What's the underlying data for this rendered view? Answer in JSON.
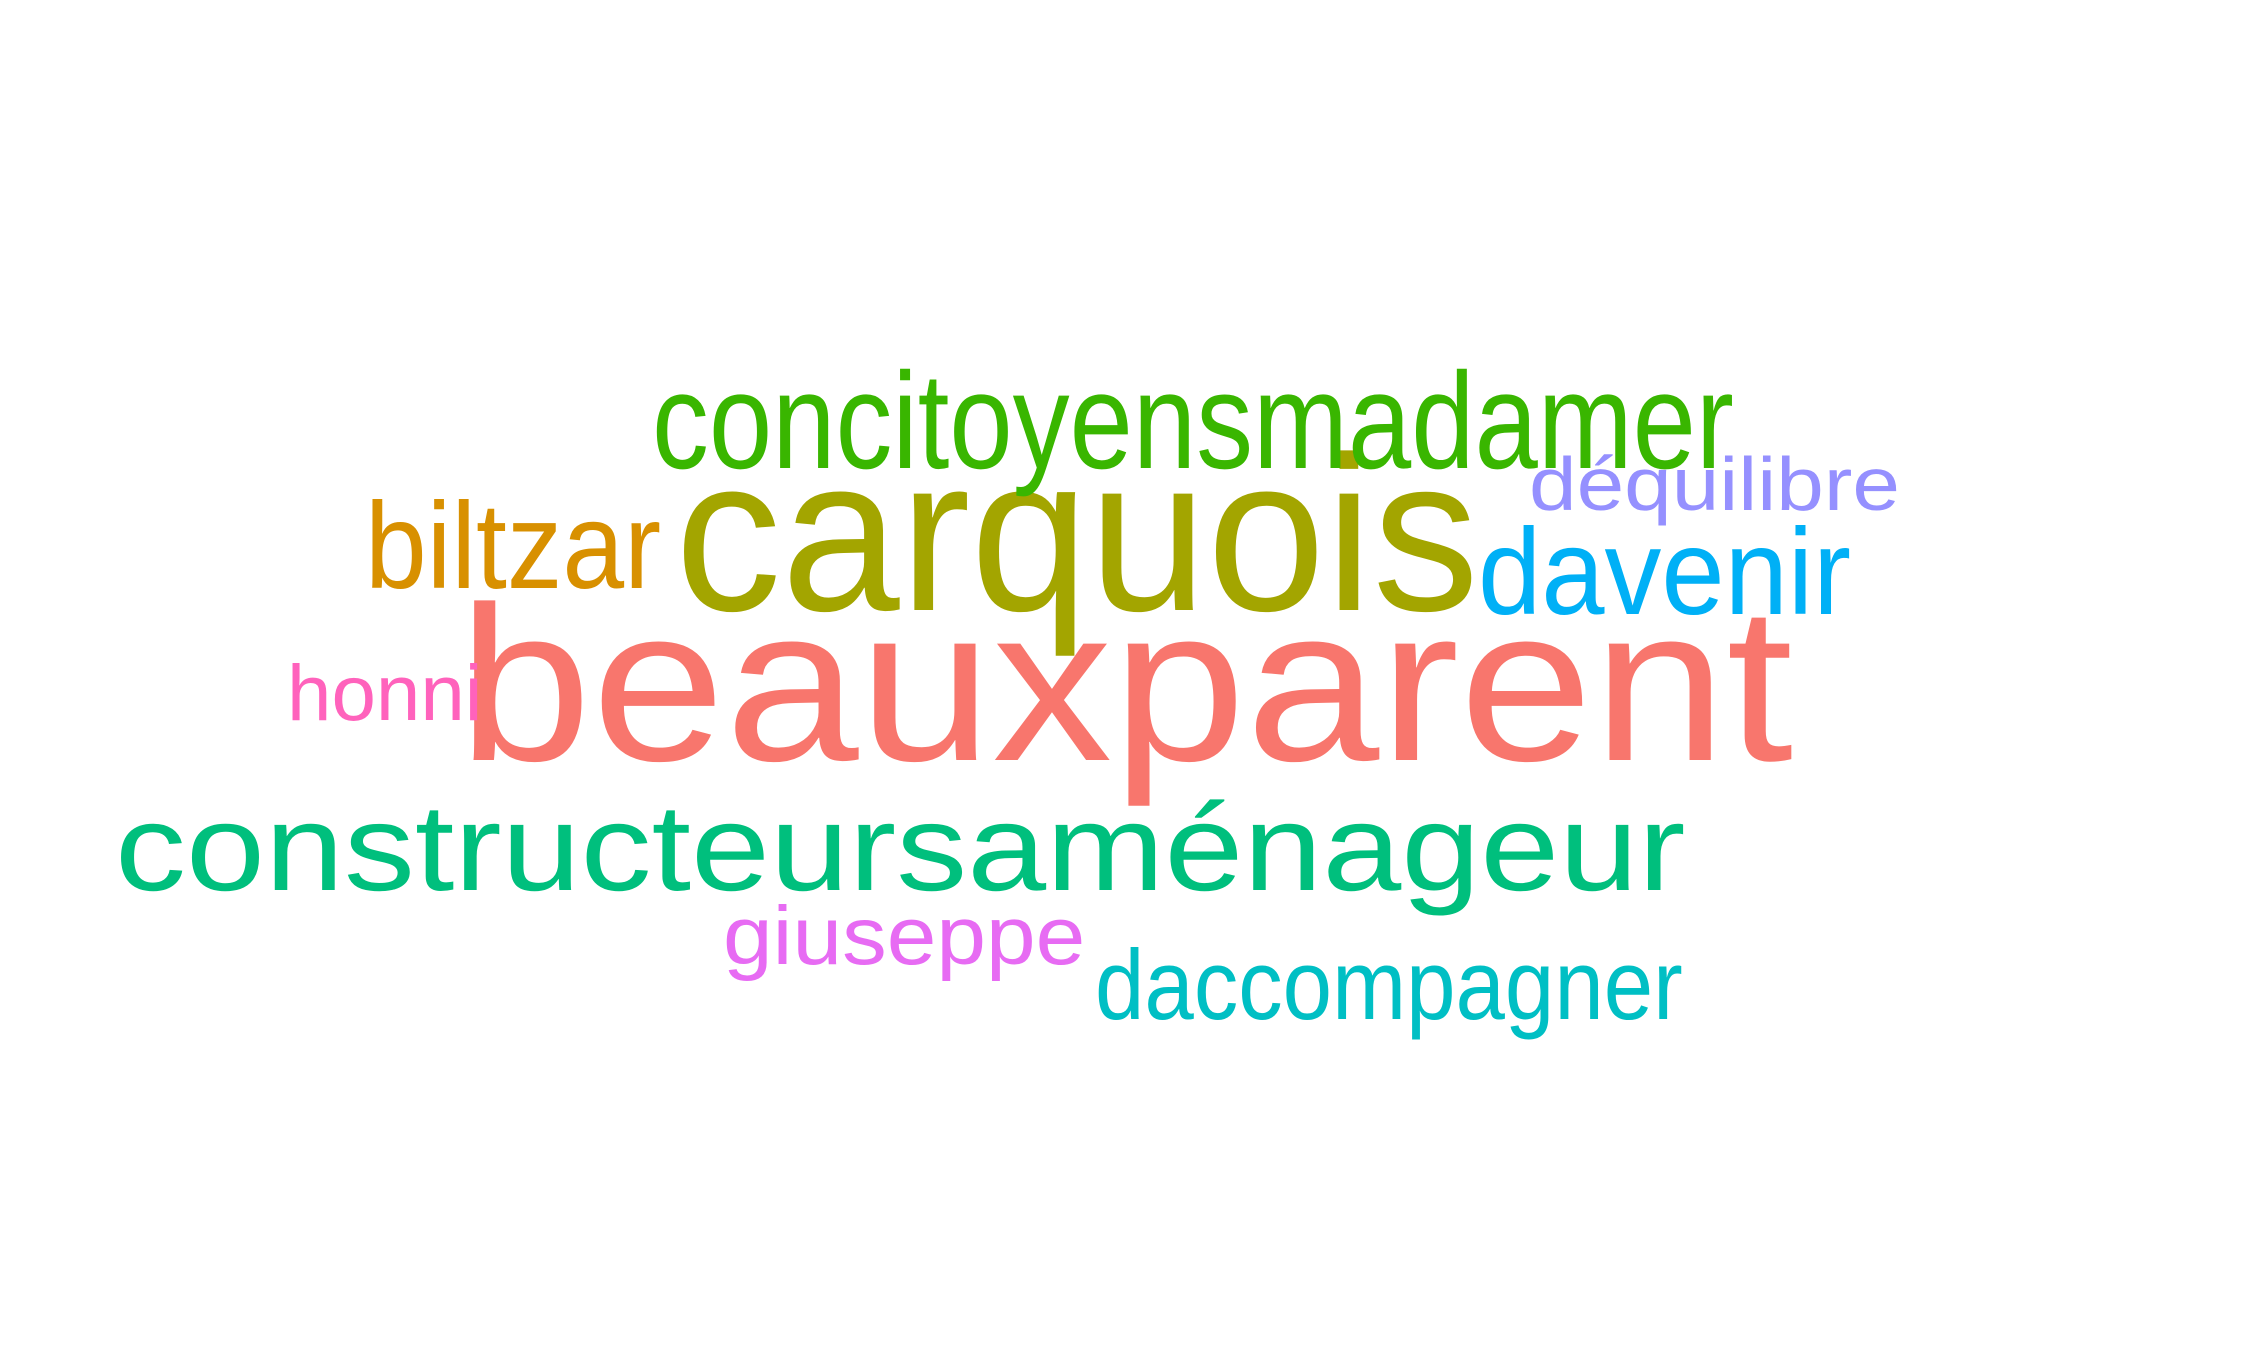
{
  "words": [
    {
      "text": "beauxparent",
      "color": "#F8766D"
    },
    {
      "text": "carquois",
      "color": "#A3A500"
    },
    {
      "text": "concitoyensmadamer",
      "color": "#39B600"
    },
    {
      "text": "constructeursaménageur",
      "color": "#00BF7D"
    },
    {
      "text": "daccompagner",
      "color": "#00BFC4"
    },
    {
      "text": "davenir",
      "color": "#00B0F6"
    },
    {
      "text": "déquilibre",
      "color": "#9590FF"
    },
    {
      "text": "giuseppe",
      "color": "#E76BF3"
    },
    {
      "text": "honni",
      "color": "#FF62BC"
    },
    {
      "text": "biltzar",
      "color": "#D89000"
    }
  ]
}
